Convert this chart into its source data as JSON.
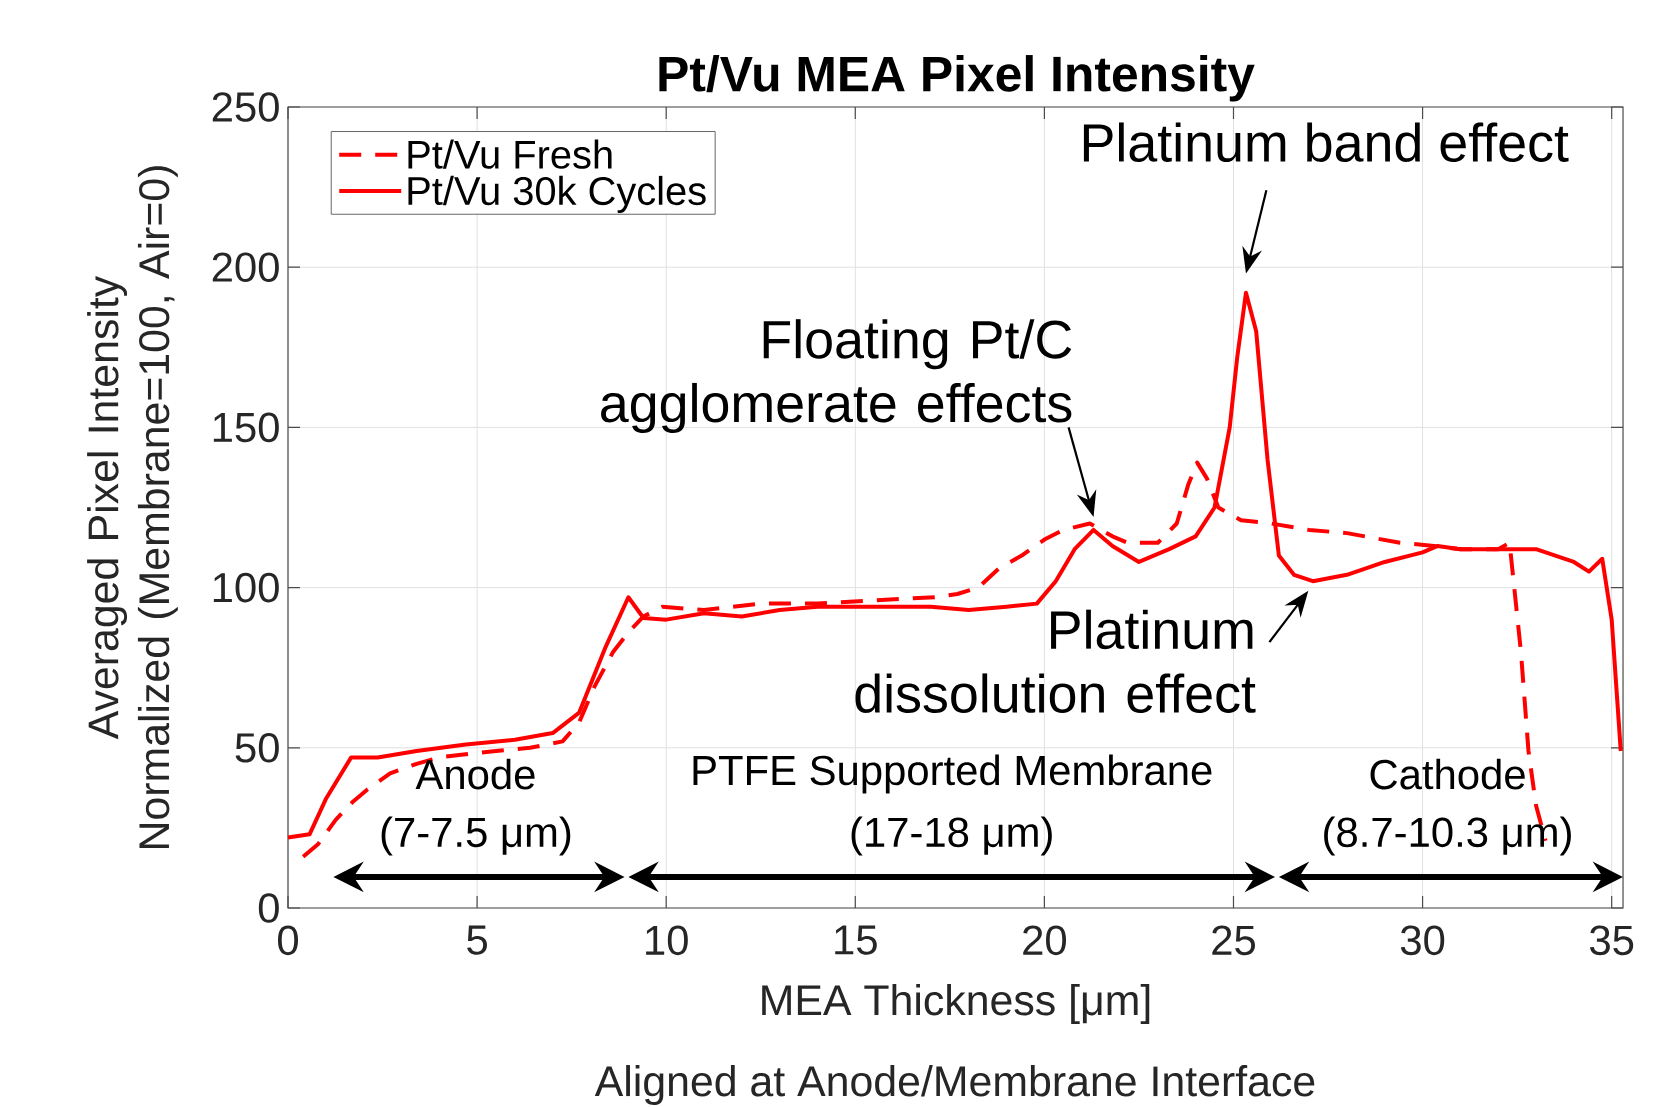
{
  "chart_data": {
    "type": "line",
    "title": "Pt/Vu MEA Pixel Intensity",
    "xlabel": "MEA Thickness [μm]",
    "ylabel": "Averaged Pixel Intensity Normalized (Membrane=100, Air=0)",
    "xlim": [
      0,
      35.3
    ],
    "ylim": [
      0,
      250
    ],
    "xticks": [
      0,
      5,
      10,
      15,
      20,
      25,
      30,
      35
    ],
    "yticks": [
      0,
      50,
      100,
      150,
      200,
      250
    ],
    "grid": true,
    "legend": "top left",
    "series": [
      {
        "name": "Pt/Vu Fresh",
        "color": "#ff0000",
        "line_style": "dashed",
        "x": [
          0.4,
          0.8,
          1.26,
          1.7,
          2.1,
          2.7,
          3.4,
          4.0,
          4.7,
          5.5,
          6.4,
          7.26,
          7.7,
          8.1,
          8.6,
          9.0,
          9.4,
          9.9,
          11,
          12.5,
          14,
          15.5,
          17.1,
          17.7,
          18.25,
          18.8,
          19.4,
          20,
          20.5,
          21.2,
          21.8,
          22.2,
          23,
          23.5,
          23.8,
          24.04,
          24.3,
          24.6,
          25.2,
          26,
          27,
          28,
          29.4,
          30.3,
          31,
          32,
          32.3,
          32.6,
          32.8,
          33.0,
          33.25
        ],
        "values": [
          16,
          20,
          27.5,
          33,
          37,
          42,
          45,
          47,
          48,
          49,
          50,
          52,
          58,
          69,
          80,
          86,
          91,
          94,
          93,
          95,
          95,
          96,
          97,
          98,
          100,
          106,
          110,
          115,
          118,
          120,
          116,
          114,
          114,
          120,
          132,
          139,
          134,
          125,
          121,
          120,
          118,
          117,
          114,
          113,
          112,
          112,
          114,
          80,
          49,
          32,
          21
        ]
      },
      {
        "name": "Pt/Vu 30k Cycles",
        "color": "#ff0000",
        "line_style": "solid",
        "x": [
          0,
          0.57,
          1.0,
          1.67,
          2.37,
          3.4,
          4.7,
          6.0,
          7.0,
          7.7,
          8.4,
          9.0,
          9.4,
          10,
          11,
          12,
          13,
          14,
          15,
          16,
          17,
          18,
          19,
          19.8,
          20.3,
          20.8,
          21.3,
          21.8,
          22.5,
          23.3,
          24,
          24.5,
          24.9,
          25.1,
          25.33,
          25.6,
          25.9,
          26.2,
          26.6,
          27.1,
          28,
          29,
          30,
          30.4,
          31,
          32,
          33,
          34,
          34.4,
          34.75,
          35.0,
          35.24
        ],
        "values": [
          22,
          23,
          34,
          47,
          47,
          49,
          51,
          52.5,
          54.6,
          61,
          81.5,
          97,
          90.5,
          90,
          92,
          91,
          93,
          94,
          94,
          94,
          94,
          93,
          94,
          95,
          102,
          112,
          118,
          113,
          108,
          112,
          116,
          125,
          150,
          172,
          192,
          180,
          140,
          110,
          104,
          102,
          104,
          108,
          111,
          113,
          112,
          112,
          112,
          108,
          105,
          109,
          90,
          49
        ]
      }
    ],
    "annotations": [
      {
        "text": "Platinum band effect",
        "x": 25.33,
        "y": 192
      },
      {
        "text": "Floating Pt/C agglomerate effects",
        "x": 21.3,
        "y": 118
      },
      {
        "text": "Platinum dissolution effect",
        "x": 27.1,
        "y": 102
      },
      "Anode",
      "(7-7.5 μm)",
      "PTFE Supported Membrane",
      "(17-18 μm)",
      "Cathode",
      "(8.7-10.3 μm)",
      "Aligned at Anode/Membrane Interface"
    ]
  }
}
